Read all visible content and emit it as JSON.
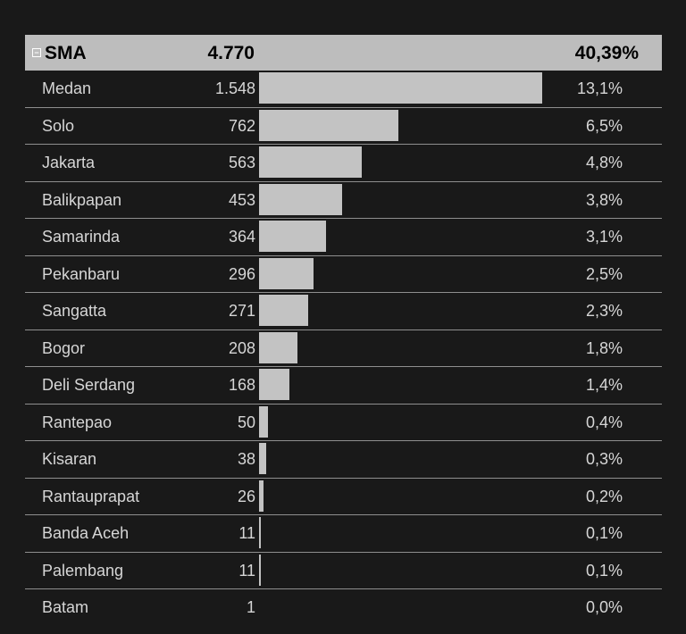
{
  "chart_data": {
    "type": "bar",
    "header": {
      "label": "SMA",
      "value": "4.770",
      "percent": "40,39%"
    },
    "categories": [
      "Medan",
      "Solo",
      "Jakarta",
      "Balikpapan",
      "Samarinda",
      "Pekanbaru",
      "Sangatta",
      "Bogor",
      "Deli Serdang",
      "Rantepao",
      "Kisaran",
      "Rantauprapat",
      "Banda Aceh",
      "Palembang",
      "Batam"
    ],
    "values": [
      1548,
      762,
      563,
      453,
      364,
      296,
      271,
      208,
      168,
      50,
      38,
      26,
      11,
      11,
      1
    ],
    "value_labels": [
      "1.548",
      "762",
      "563",
      "453",
      "364",
      "296",
      "271",
      "208",
      "168",
      "50",
      "38",
      "26",
      "11",
      "11",
      "1"
    ],
    "percent_labels": [
      "13,1%",
      "6,5%",
      "4,8%",
      "3,8%",
      "3,1%",
      "2,5%",
      "2,3%",
      "1,8%",
      "1,4%",
      "0,4%",
      "0,3%",
      "0,2%",
      "0,1%",
      "0,1%",
      "0,0%"
    ],
    "xlim": [
      0,
      1548
    ],
    "colors": {
      "background": "#191919",
      "bar": "#c3c3c3",
      "header": "#bdbdbd",
      "text": "#d6d6d6"
    }
  }
}
